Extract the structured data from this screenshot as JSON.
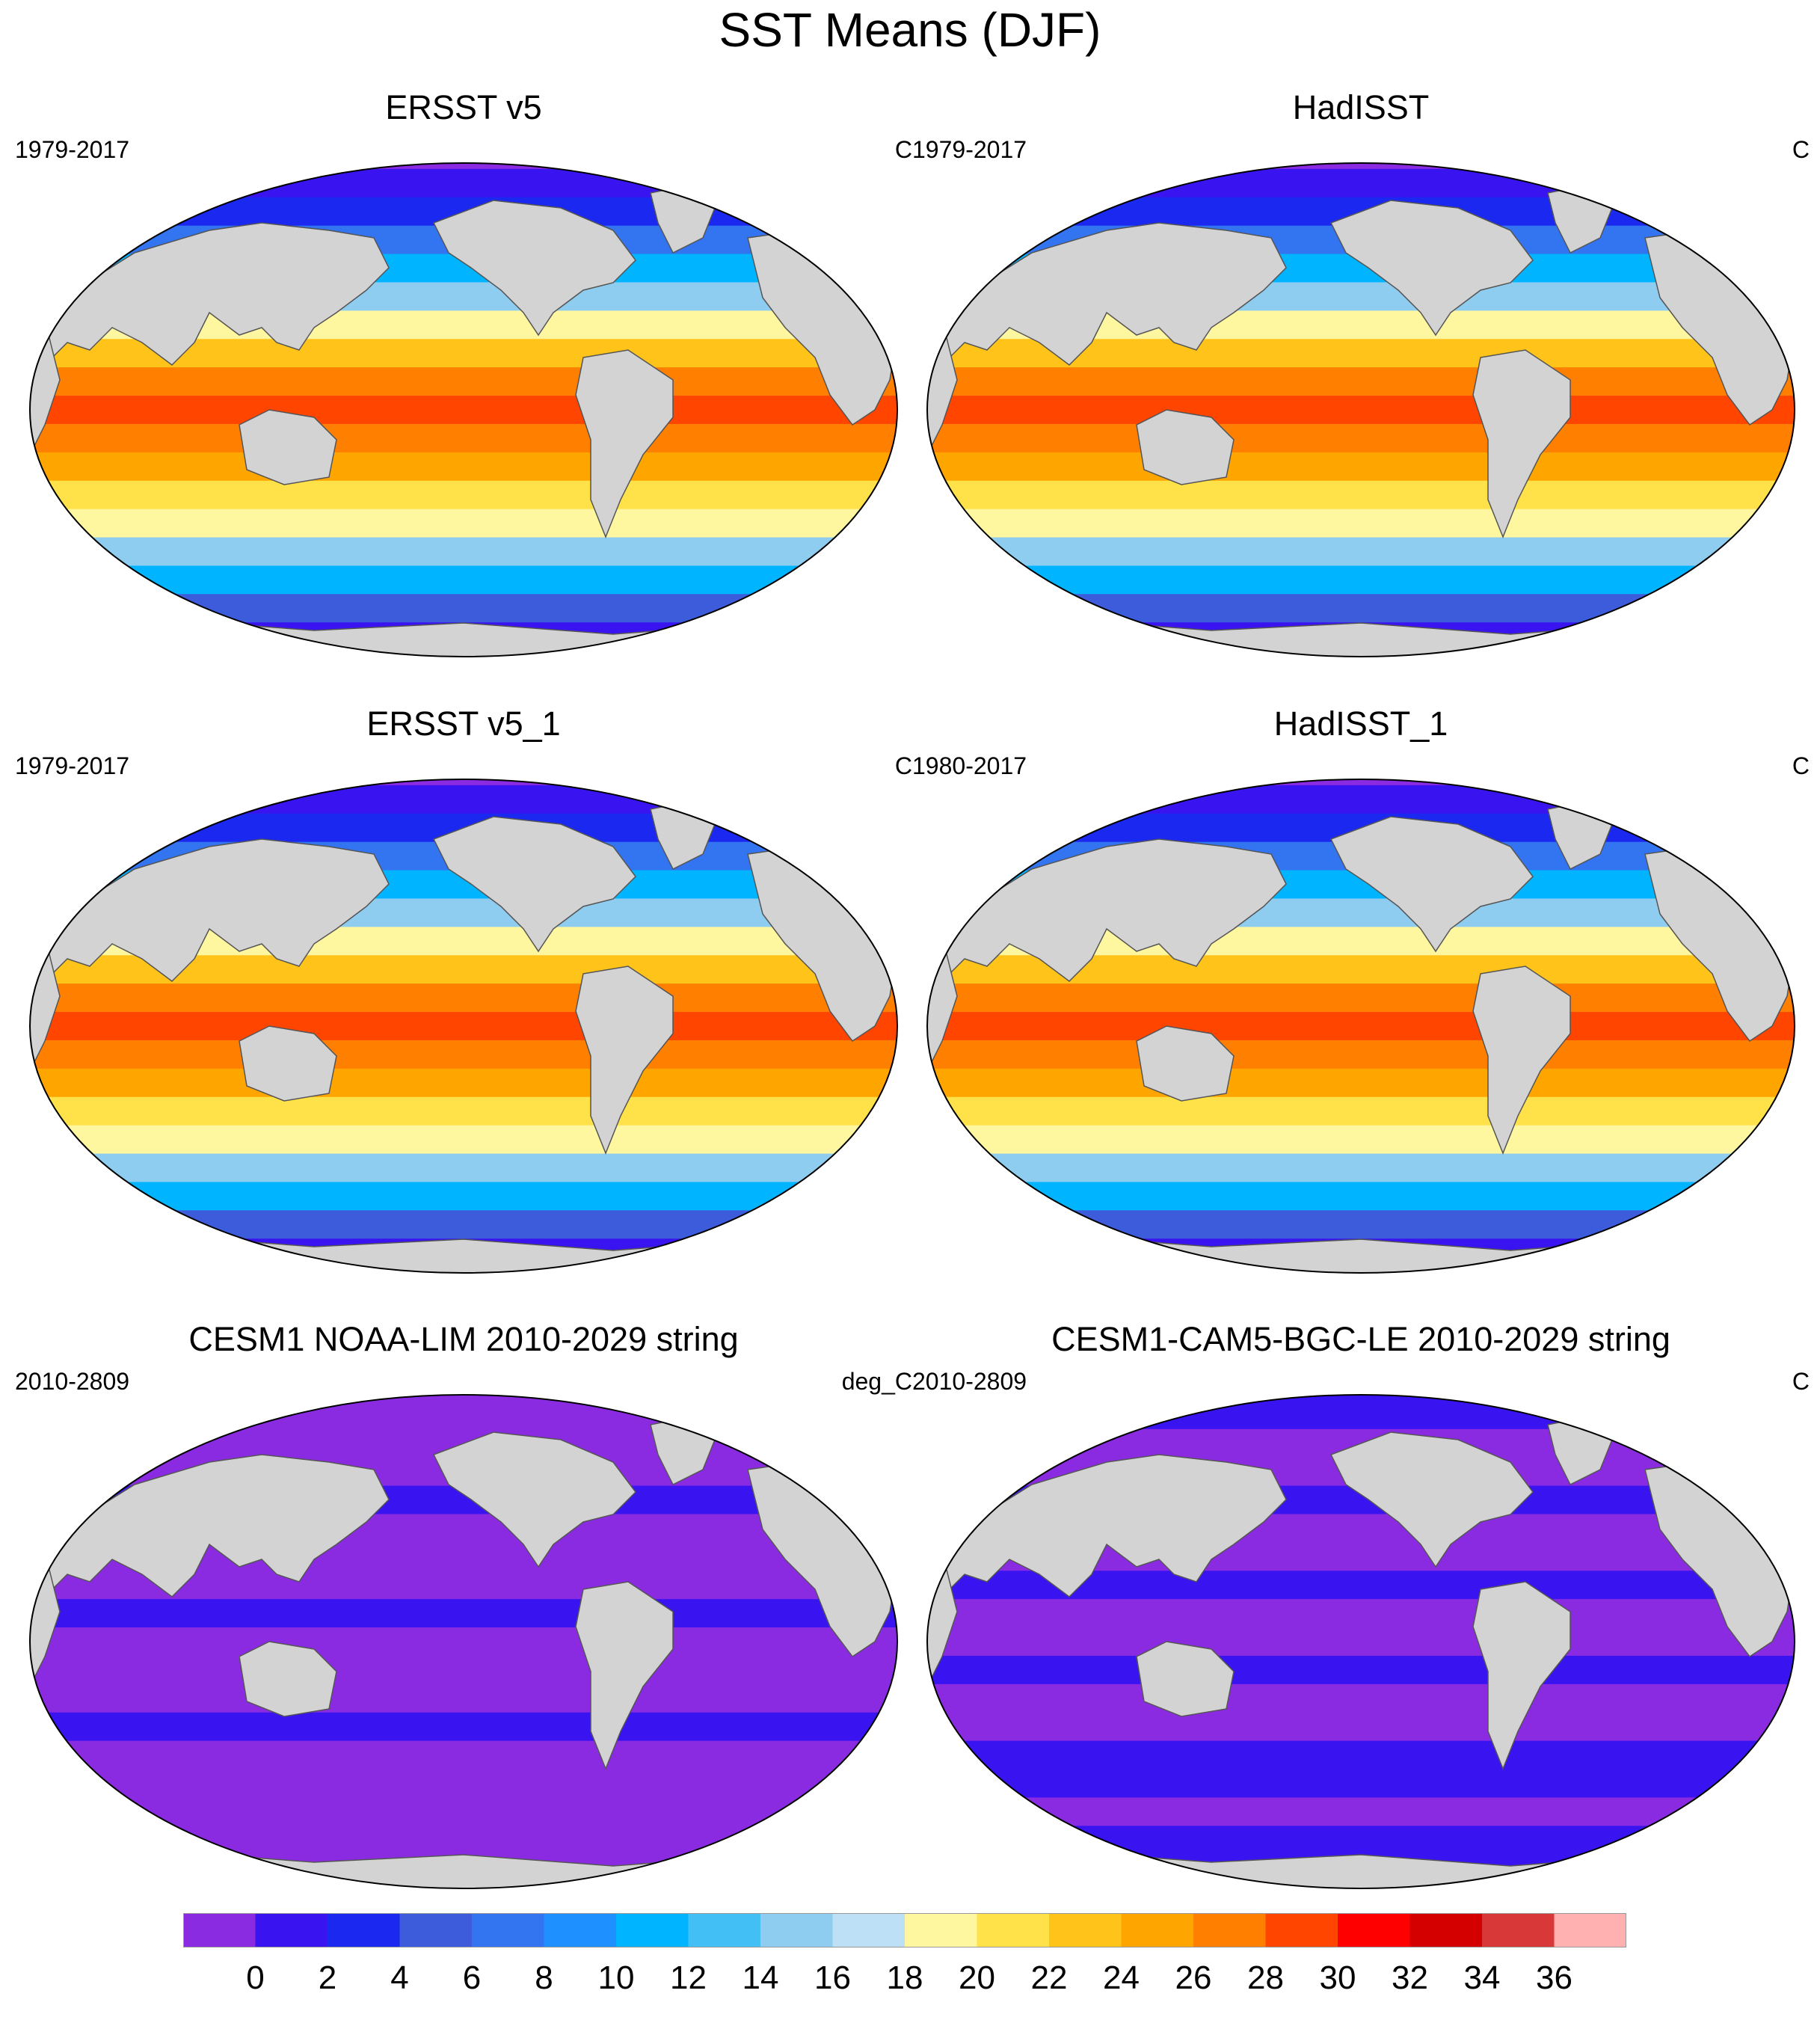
{
  "title": "SST Means (DJF)",
  "panels": [
    {
      "title": "ERSST v5",
      "period": "1979-2017",
      "units": "C",
      "style": "warm"
    },
    {
      "title": "HadISST",
      "period": "1979-2017",
      "units": "C",
      "style": "warm"
    },
    {
      "title": "ERSST v5_1",
      "period": "1979-2017",
      "units": "C",
      "style": "warm"
    },
    {
      "title": "HadISST_1",
      "period": "1980-2017",
      "units": "C",
      "style": "warm"
    },
    {
      "title": "CESM1 NOAA-LIM 2010-2029 string",
      "period": "2010-2809",
      "units": "deg_C",
      "style": "cold"
    },
    {
      "title": "CESM1-CAM5-BGC-LE 2010-2029 string",
      "period": "2010-2809",
      "units": "C",
      "style": "cold2"
    }
  ],
  "colorbar": {
    "colors": [
      "#8a2be2",
      "#3a14f0",
      "#1a28f0",
      "#3d5cdc",
      "#3374f0",
      "#1e90ff",
      "#00b4ff",
      "#42c0f6",
      "#8ecdf0",
      "#bde0f7",
      "#fff6a0",
      "#ffe14a",
      "#ffc31a",
      "#ffa500",
      "#ff7f00",
      "#ff4500",
      "#ff0000",
      "#d40000",
      "#d93838",
      "#ffb0b0"
    ],
    "labels": [
      "0",
      "2",
      "4",
      "6",
      "8",
      "10",
      "12",
      "14",
      "16",
      "18",
      "20",
      "22",
      "24",
      "26",
      "28",
      "30",
      "32",
      "34",
      "36"
    ]
  },
  "land_color": "#d3d3d3"
}
